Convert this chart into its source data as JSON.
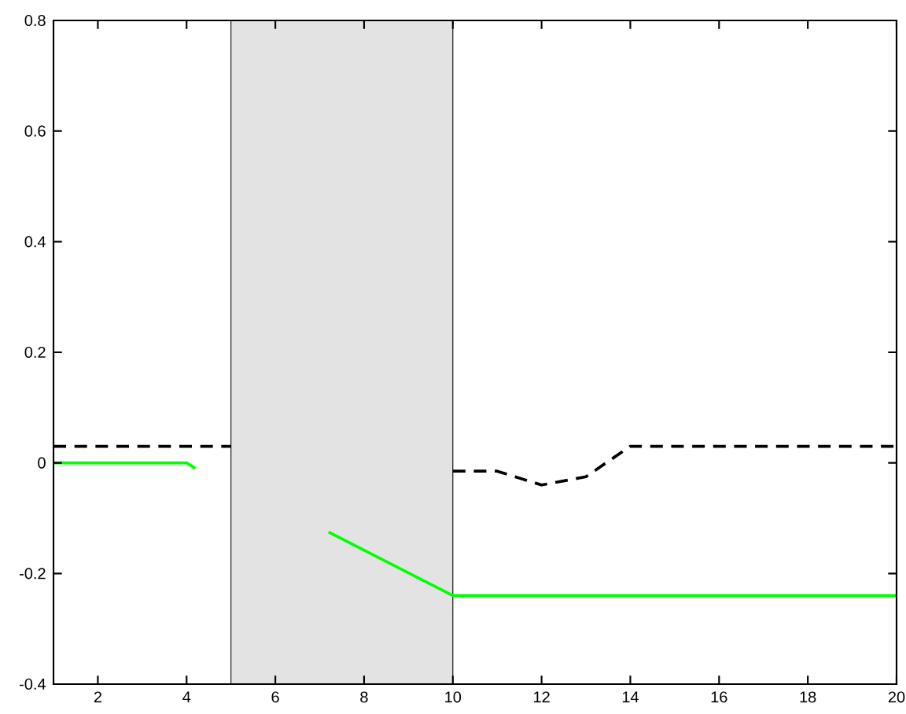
{
  "chart_data": {
    "type": "line",
    "series": [
      {
        "color": "#000000",
        "line_style": "dashed",
        "x": [
          1,
          5,
          7.5,
          10,
          11,
          12,
          13,
          14,
          20
        ],
        "values": [
          0.03,
          0.03,
          null,
          -0.015,
          -0.015,
          -0.04,
          -0.025,
          0.03,
          0.03
        ]
      },
      {
        "color": "#00ff00",
        "line_style": "solid",
        "x": [
          1,
          4,
          4.2,
          5.5,
          7.2,
          10,
          20
        ],
        "values": [
          0,
          0,
          -0.01,
          null,
          -0.125,
          -0.24,
          -0.24
        ]
      }
    ],
    "bands": [
      {
        "axis": "x",
        "from": 5,
        "to": 10,
        "color": "#e3e3e3"
      }
    ],
    "xlim": [
      1,
      20
    ],
    "ylim": [
      -0.4,
      0.8
    ],
    "xticks": [
      2,
      4,
      6,
      8,
      10,
      12,
      14,
      16,
      18,
      20
    ],
    "yticks": [
      -0.4,
      -0.2,
      0,
      0.2,
      0.4,
      0.6,
      0.8
    ],
    "grid": false
  }
}
